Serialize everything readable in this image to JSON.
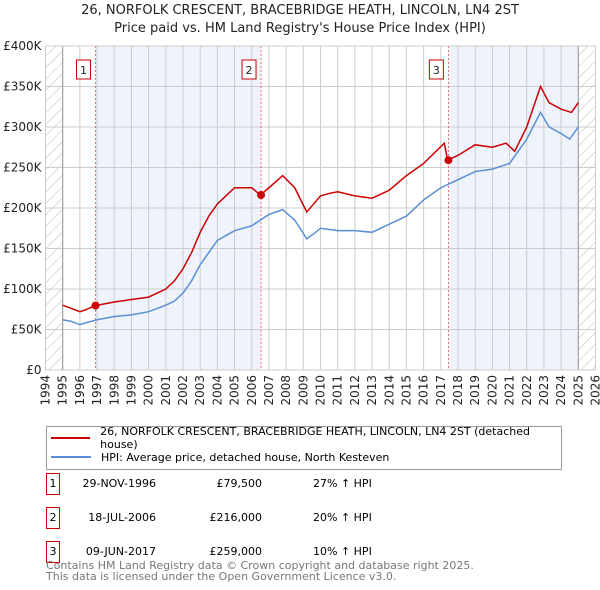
{
  "chart_data": {
    "type": "line",
    "title": "26, NORFOLK CRESCENT, BRACEBRIDGE HEATH, LINCOLN, LN4 2ST",
    "subtitle": "Price paid vs. HM Land Registry's House Price Index (HPI)",
    "xlim": [
      1994,
      2026
    ],
    "ylim": [
      0,
      400000
    ],
    "x_ticks": [
      "1994",
      "1995",
      "1996",
      "1997",
      "1998",
      "1999",
      "2000",
      "2001",
      "2002",
      "2003",
      "2004",
      "2005",
      "2006",
      "2007",
      "2008",
      "2009",
      "2010",
      "2011",
      "2012",
      "2013",
      "2014",
      "2015",
      "2016",
      "2017",
      "2018",
      "2019",
      "2020",
      "2021",
      "2022",
      "2023",
      "2024",
      "2025",
      "2026"
    ],
    "y_ticks": [
      {
        "v": 0,
        "label": "£0"
      },
      {
        "v": 50000,
        "label": "£50K"
      },
      {
        "v": 100000,
        "label": "£100K"
      },
      {
        "v": 150000,
        "label": "£150K"
      },
      {
        "v": 200000,
        "label": "£200K"
      },
      {
        "v": 250000,
        "label": "£250K"
      },
      {
        "v": 300000,
        "label": "£300K"
      },
      {
        "v": 350000,
        "label": "£350K"
      },
      {
        "v": 400000,
        "label": "£400K"
      }
    ],
    "grid": true,
    "series": [
      {
        "name": "26, NORFOLK CRESCENT, BRACEBRIDGE HEATH, LINCOLN, LN4 2ST (detached house)",
        "color": "#cc0000",
        "x": [
          1995,
          1995.5,
          1996,
          1996.3,
          1996.9,
          1998,
          1999,
          2000,
          2001,
          2001.5,
          2002,
          2002.5,
          2003,
          2003.5,
          2004,
          2004.5,
          2005,
          2006,
          2006.5,
          2007,
          2007.8,
          2008.5,
          2009.2,
          2009.6,
          2010,
          2010.5,
          2011,
          2012,
          2013,
          2014,
          2015,
          2016,
          2017.2,
          2017.4,
          2018,
          2019,
          2020,
          2020.8,
          2021.3,
          2022,
          2022.8,
          2023.3,
          2024,
          2024.6,
          2025
        ],
        "y": [
          80000,
          76000,
          72000,
          74000,
          79500,
          84000,
          87000,
          90000,
          100000,
          110000,
          125000,
          145000,
          170000,
          190000,
          205000,
          215000,
          225000,
          225000,
          216000,
          225000,
          240000,
          225000,
          195000,
          205000,
          215000,
          218000,
          220000,
          215000,
          212000,
          222000,
          240000,
          255000,
          280000,
          259000,
          265000,
          278000,
          275000,
          280000,
          270000,
          300000,
          350000,
          330000,
          322000,
          318000,
          330000
        ]
      },
      {
        "name": "HPI: Average price, detached house, North Kesteven",
        "color": "#5b8fd4",
        "x": [
          1995,
          1995.5,
          1996,
          1996.3,
          1997,
          1998,
          1999,
          2000,
          2001,
          2001.5,
          2002,
          2002.5,
          2003,
          2003.5,
          2004,
          2004.5,
          2005,
          2006,
          2007,
          2007.8,
          2008.5,
          2009.2,
          2009.6,
          2010,
          2011,
          2012,
          2013,
          2014,
          2015,
          2016,
          2017,
          2018,
          2019,
          2020,
          2021,
          2022,
          2022.8,
          2023.3,
          2024,
          2024.5,
          2025
        ],
        "y": [
          62000,
          60000,
          56000,
          58000,
          62000,
          66000,
          68000,
          72000,
          80000,
          85000,
          95000,
          110000,
          130000,
          145000,
          160000,
          166000,
          172000,
          178000,
          192000,
          198000,
          185000,
          162000,
          168000,
          175000,
          172000,
          172000,
          170000,
          180000,
          190000,
          210000,
          225000,
          235000,
          245000,
          248000,
          255000,
          285000,
          318000,
          300000,
          292000,
          285000,
          300000
        ]
      }
    ],
    "sales": [
      {
        "num": "1",
        "x": 1996.91,
        "y": 79500,
        "date": "29-NOV-1996",
        "price": "£79,500",
        "hpi": "27% ↑ HPI"
      },
      {
        "num": "2",
        "x": 2006.54,
        "y": 216000,
        "date": "18-JUL-2006",
        "price": "£216,000",
        "hpi": "20% ↑ HPI"
      },
      {
        "num": "3",
        "x": 2017.44,
        "y": 259000,
        "date": "09-JUN-2017",
        "price": "£259,000",
        "hpi": "10% ↑ HPI"
      }
    ],
    "shaded_ranges": [
      [
        1996.91,
        2006.54
      ],
      [
        2017.44,
        2025
      ]
    ],
    "hatched_ranges": [
      [
        1994,
        1995
      ],
      [
        2025,
        2026
      ]
    ],
    "legend_placement": "below"
  },
  "legend": {
    "red": "26, NORFOLK CRESCENT, BRACEBRIDGE HEATH, LINCOLN, LN4 2ST (detached house)",
    "blue": "HPI: Average price, detached house, North Kesteven"
  },
  "footer": {
    "line1": "Contains HM Land Registry data © Crown copyright and database right 2025.",
    "line2": "This data is licensed under the Open Government Licence v3.0."
  }
}
